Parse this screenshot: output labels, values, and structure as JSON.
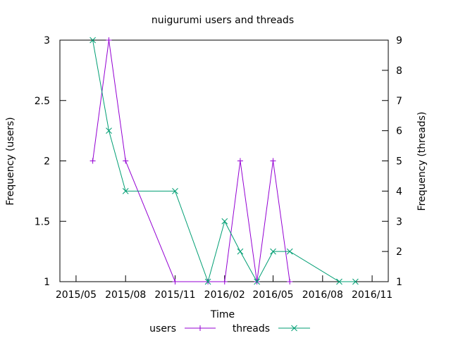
{
  "chart_data": {
    "type": "line",
    "title": "nuigurumi users and threads",
    "xlabel": "Time",
    "ylabel_left": "Frequency (users)",
    "ylabel_right": "Frequency (threads)",
    "x_ticks": [
      "2015/05",
      "2015/08",
      "2015/11",
      "2016/02",
      "2016/05",
      "2016/08",
      "2016/11"
    ],
    "xlim": [
      "2015-04-01",
      "2016-12-01"
    ],
    "ylim_left": [
      1,
      3
    ],
    "ylim_right": [
      1,
      9
    ],
    "y_ticks_left": [
      1,
      1.5,
      2,
      2.5,
      3
    ],
    "y_ticks_right": [
      1,
      2,
      3,
      4,
      5,
      6,
      7,
      8,
      9
    ],
    "legend": "bottom",
    "grid": false,
    "series": [
      {
        "name": "users",
        "axis": "left",
        "marker": "+",
        "color": "#9400d3",
        "points": [
          {
            "x": "2015-06-01",
            "y": 2
          },
          {
            "x": "2015-07-01",
            "y": 3
          },
          {
            "x": "2015-08-01",
            "y": 2
          },
          {
            "x": "2015-11-01",
            "y": 1
          },
          {
            "x": "2016-01-01",
            "y": 1
          },
          {
            "x": "2016-02-01",
            "y": 1
          },
          {
            "x": "2016-03-01",
            "y": 2
          },
          {
            "x": "2016-04-01",
            "y": 1
          },
          {
            "x": "2016-05-01",
            "y": 2
          },
          {
            "x": "2016-06-01",
            "y": 1
          }
        ]
      },
      {
        "name": "threads",
        "axis": "right",
        "marker": "x",
        "color": "#009e73",
        "points": [
          {
            "x": "2015-06-01",
            "y": 9
          },
          {
            "x": "2015-07-01",
            "y": 6
          },
          {
            "x": "2015-08-01",
            "y": 4
          },
          {
            "x": "2015-11-01",
            "y": 4
          },
          {
            "x": "2016-01-01",
            "y": 1
          },
          {
            "x": "2016-02-01",
            "y": 3
          },
          {
            "x": "2016-03-01",
            "y": 2
          },
          {
            "x": "2016-04-01",
            "y": 1
          },
          {
            "x": "2016-05-01",
            "y": 2
          },
          {
            "x": "2016-06-01",
            "y": 2
          },
          {
            "x": "2016-09-01",
            "y": 1
          },
          {
            "x": "2016-10-01",
            "y": 1
          }
        ]
      }
    ]
  }
}
